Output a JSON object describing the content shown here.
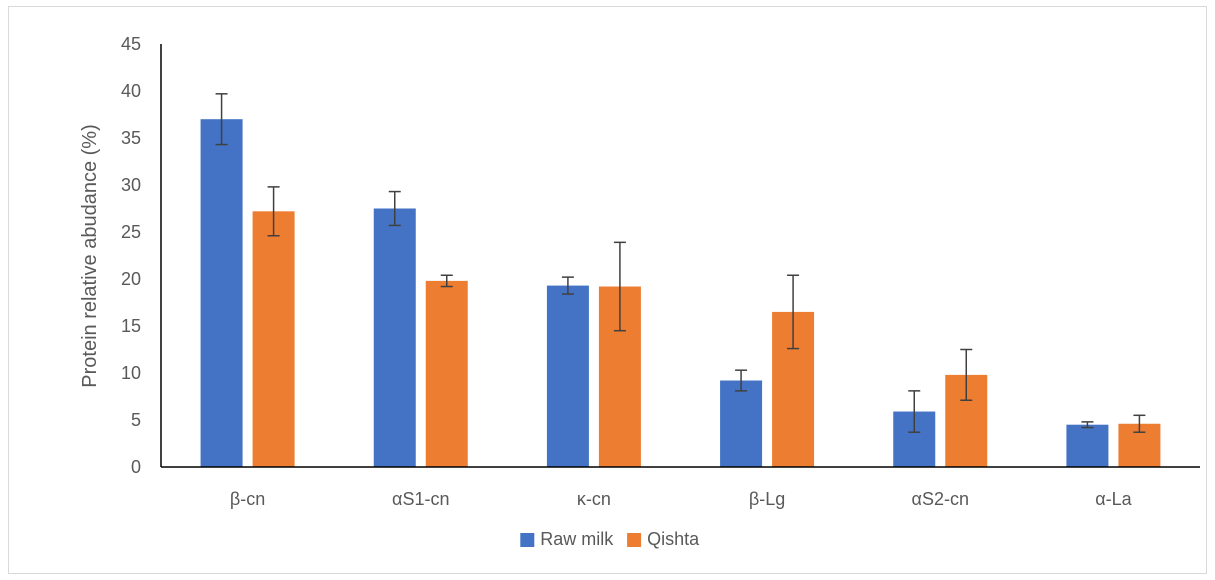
{
  "chart_data": {
    "type": "bar",
    "title": "",
    "xlabel": "",
    "ylabel": "Protein relative abudance (%)",
    "ylim": [
      0,
      45
    ],
    "yticks": [
      0,
      5,
      10,
      15,
      20,
      25,
      30,
      35,
      40,
      45
    ],
    "grid": false,
    "legend_position": "bottom",
    "categories": [
      "β-cn",
      "αS1-cn",
      "κ-cn",
      "β-Lg",
      "αS2-cn",
      "α-La"
    ],
    "series": [
      {
        "name": "Raw milk",
        "color": "#4472c4",
        "values": [
          37.0,
          27.5,
          19.3,
          9.2,
          5.9,
          4.5
        ],
        "errors": [
          2.7,
          1.8,
          0.9,
          1.1,
          2.2,
          0.3
        ]
      },
      {
        "name": "Qishta",
        "color": "#ed7d31",
        "values": [
          27.2,
          19.8,
          19.2,
          16.5,
          9.8,
          4.6
        ],
        "errors": [
          2.6,
          0.6,
          4.7,
          3.9,
          2.7,
          0.9
        ]
      }
    ]
  }
}
